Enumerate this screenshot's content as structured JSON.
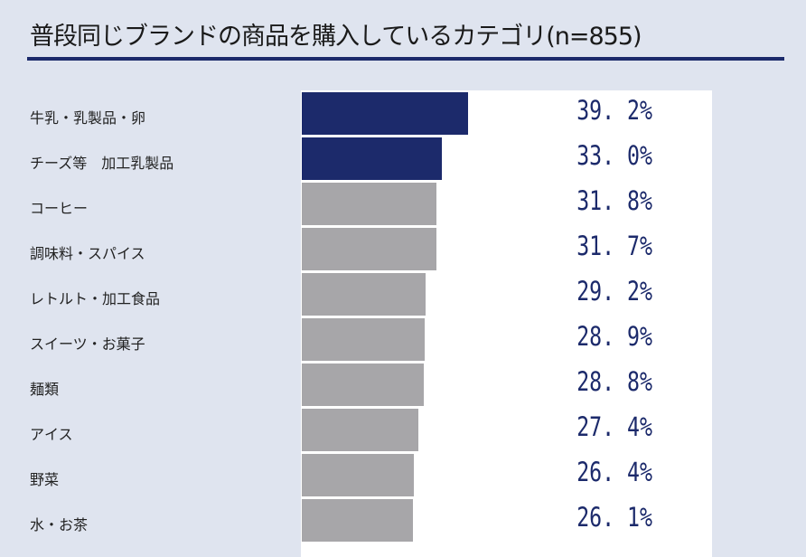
{
  "chart_data": {
    "type": "bar",
    "orientation": "horizontal",
    "title": "普段同じブランドの商品を購入しているカテゴリ(n=855)",
    "categories": [
      "牛乳・乳製品・卵",
      "チーズ等　加工乳製品",
      "コーヒー",
      "調味料・スパイス",
      "レトルト・加工食品",
      "スイーツ・お菓子",
      "麺類",
      "アイス",
      "野菜",
      "水・お茶"
    ],
    "values": [
      39.2,
      33.0,
      31.8,
      31.7,
      29.2,
      28.9,
      28.8,
      27.4,
      26.4,
      26.1
    ],
    "value_labels": [
      "39. 2%",
      "33. 0%",
      "31. 8%",
      "31. 7%",
      "29. 2%",
      "28. 9%",
      "28. 8%",
      "27. 4%",
      "26. 4%",
      "26. 1%"
    ],
    "highlight_count": 2,
    "xlim": [
      0,
      100
    ],
    "unit": "%"
  },
  "colors": {
    "highlight": "#1c2a6b",
    "default": "#a7a6a9",
    "background": "#dfe4ef"
  }
}
